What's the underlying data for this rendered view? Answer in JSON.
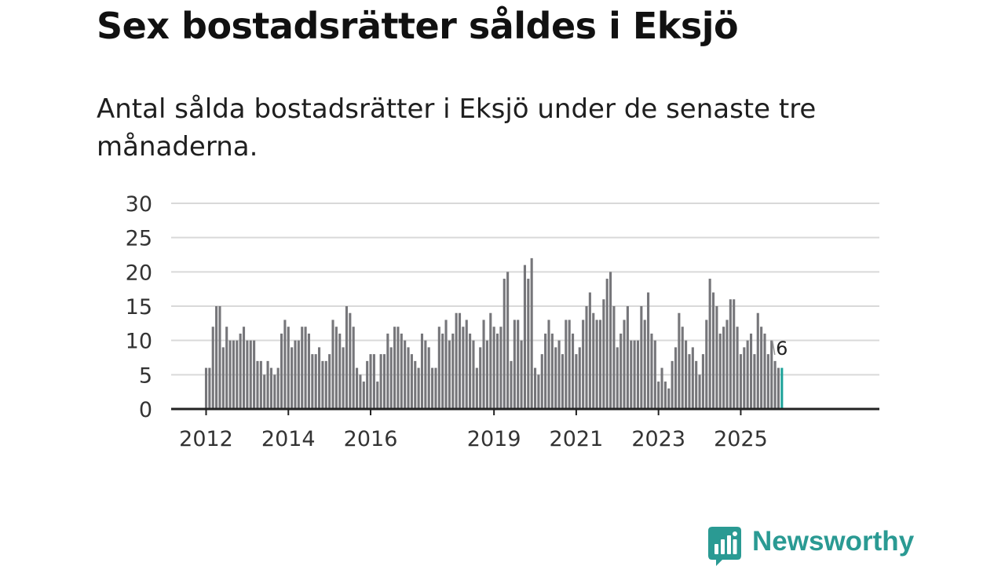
{
  "title": "Sex bostadsrätter såldes i Eksjö",
  "subtitle": "Antal sålda bostadsrätter i Eksjö under de senaste tre månaderna.",
  "brand": {
    "name": "Newsworthy",
    "color": "#2a9a93"
  },
  "colors": {
    "bar": "#76767a",
    "highlight": "#1fa39a",
    "grid": "#d9d9d9",
    "axis": "#222222"
  },
  "chart_data": {
    "type": "bar",
    "title": "Sex bostadsrätter såldes i Eksjö",
    "xlabel": "",
    "ylabel": "",
    "ylim": [
      0,
      30
    ],
    "yticks": [
      0,
      5,
      10,
      15,
      20,
      25,
      30
    ],
    "xticks": [
      {
        "label": "2012",
        "index": 0
      },
      {
        "label": "2014",
        "index": 24
      },
      {
        "label": "2016",
        "index": 48
      },
      {
        "label": "2019",
        "index": 84
      },
      {
        "label": "2021",
        "index": 108
      },
      {
        "label": "2023",
        "index": 132
      },
      {
        "label": "2025",
        "index": 156
      }
    ],
    "values": [
      6,
      6,
      12,
      15,
      15,
      9,
      12,
      10,
      10,
      10,
      11,
      12,
      10,
      10,
      10,
      7,
      7,
      5,
      7,
      6,
      5,
      6,
      11,
      13,
      12,
      9,
      10,
      10,
      12,
      12,
      11,
      8,
      8,
      9,
      7,
      7,
      8,
      13,
      12,
      11,
      9,
      15,
      14,
      12,
      6,
      5,
      4,
      7,
      8,
      8,
      4,
      8,
      8,
      11,
      9,
      12,
      12,
      11,
      10,
      9,
      8,
      7,
      6,
      11,
      10,
      9,
      6,
      6,
      12,
      11,
      13,
      10,
      11,
      14,
      14,
      12,
      13,
      11,
      10,
      6,
      9,
      13,
      10,
      14,
      12,
      11,
      12,
      19,
      20,
      7,
      13,
      13,
      10,
      21,
      19,
      22,
      6,
      5,
      8,
      11,
      13,
      11,
      9,
      10,
      8,
      13,
      13,
      11,
      8,
      9,
      13,
      15,
      17,
      14,
      13,
      13,
      16,
      19,
      20,
      15,
      9,
      11,
      13,
      15,
      10,
      10,
      10,
      15,
      13,
      17,
      11,
      10,
      4,
      6,
      4,
      3,
      7,
      9,
      14,
      12,
      10,
      8,
      9,
      7,
      5,
      8,
      13,
      19,
      17,
      15,
      11,
      12,
      13,
      16,
      16,
      12,
      8,
      9,
      10,
      11,
      8,
      14,
      12,
      11,
      8,
      10,
      7,
      6
    ],
    "highlight": {
      "index": 168,
      "value": 6,
      "label": "6"
    }
  }
}
